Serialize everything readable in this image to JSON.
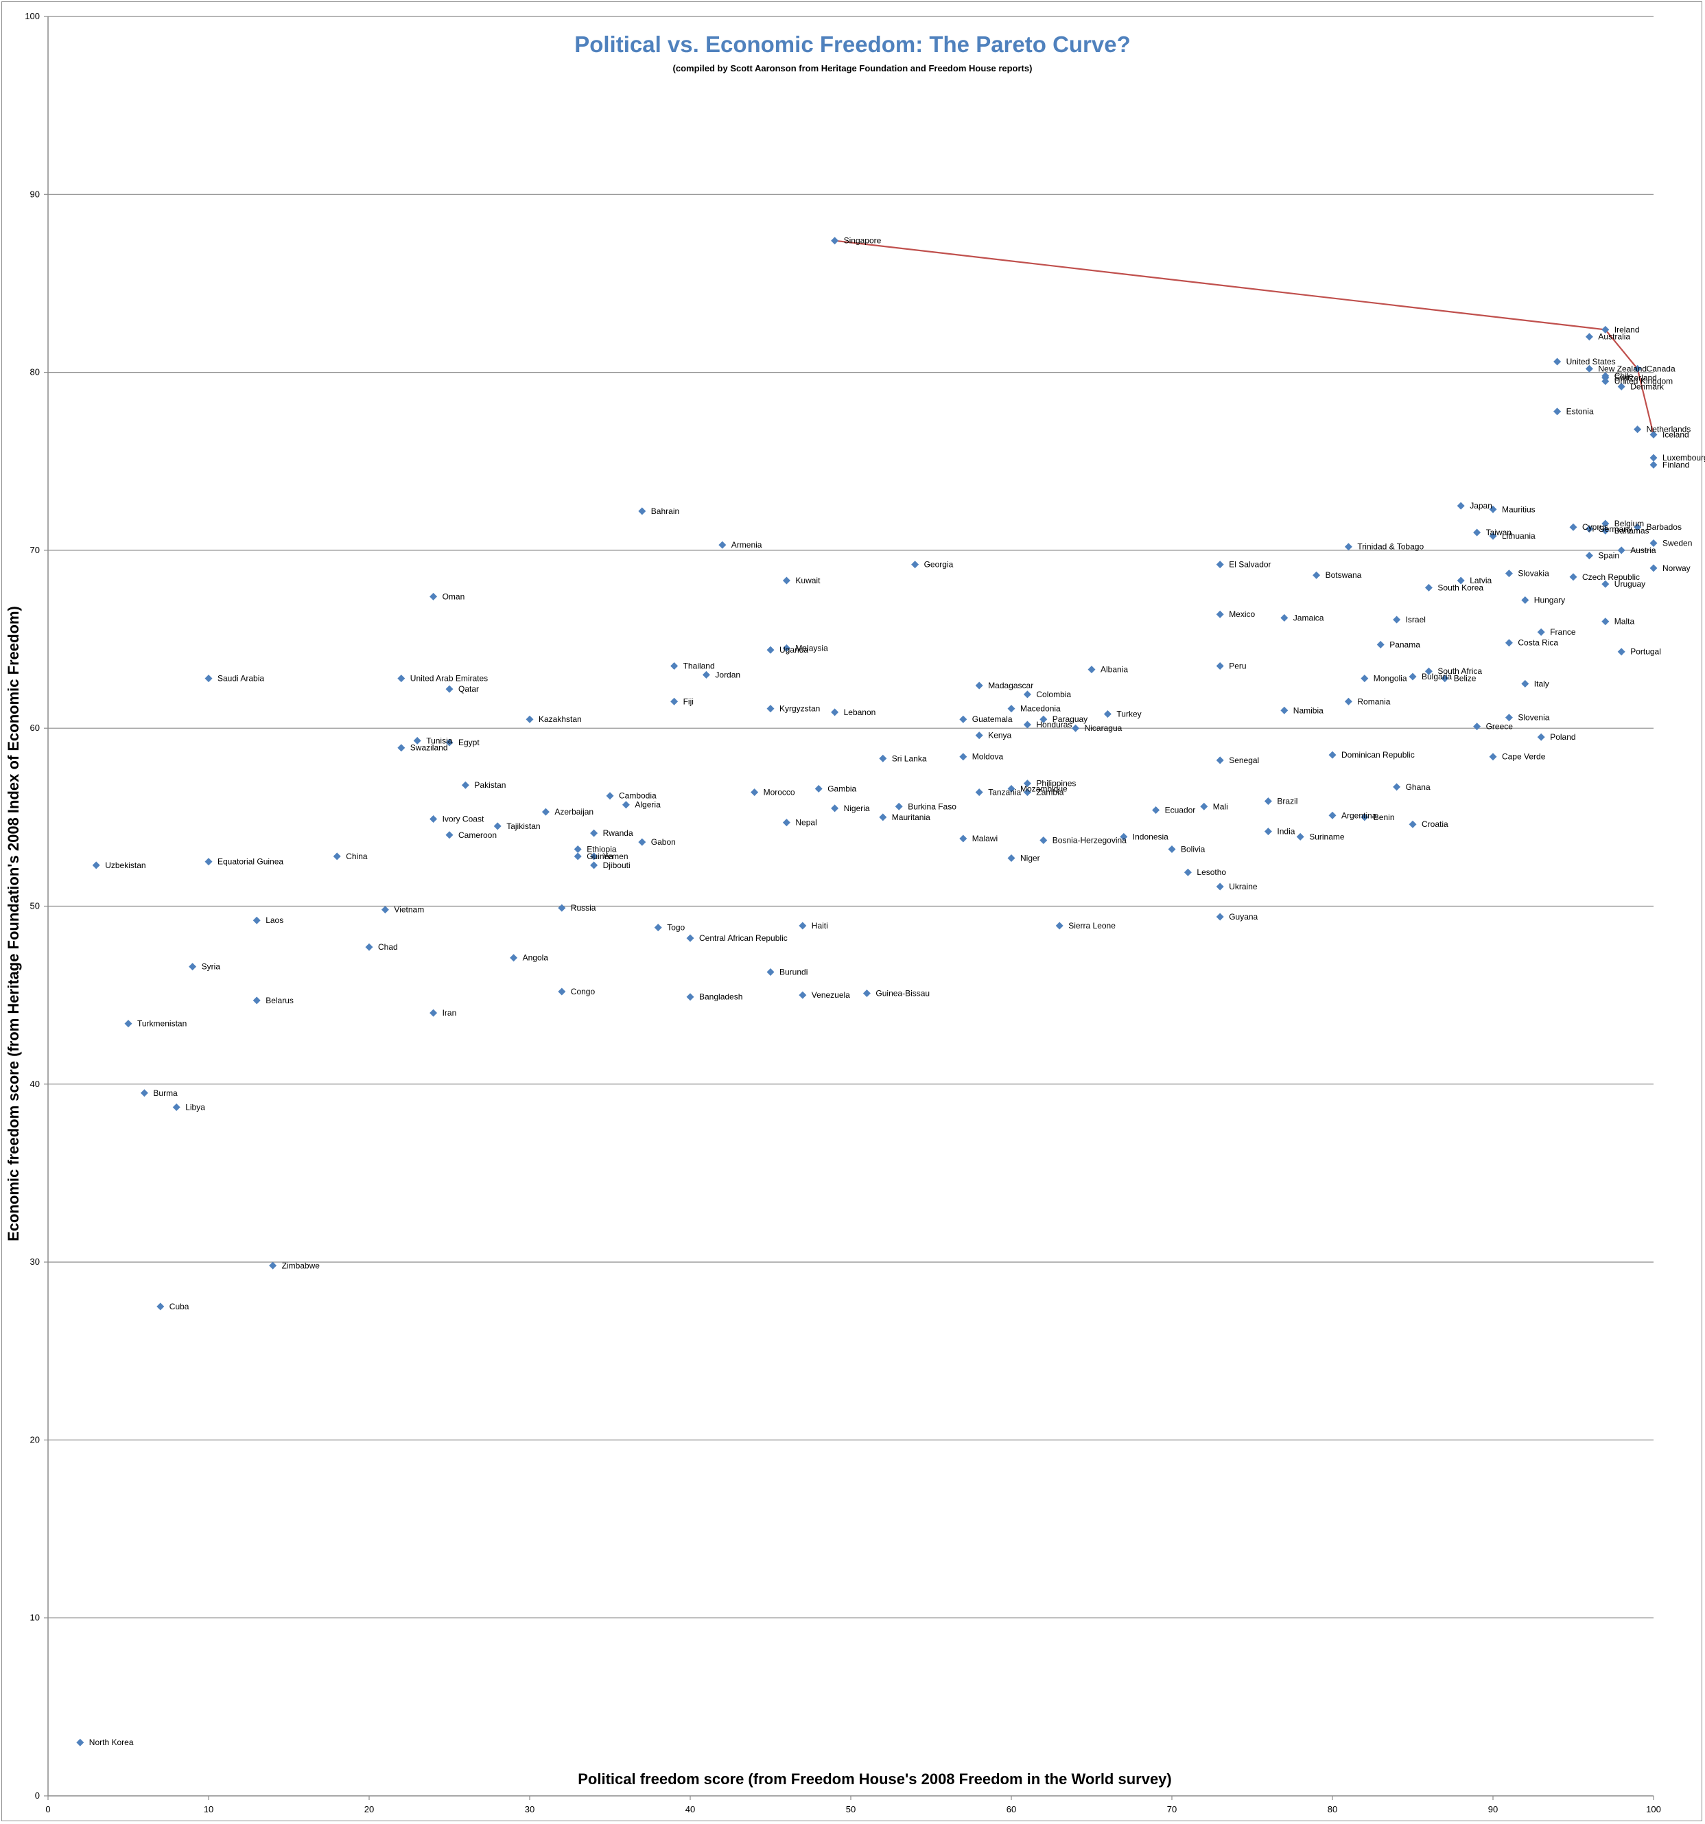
{
  "chart_data": {
    "type": "scatter",
    "title": "Political vs. Economic Freedom: The Pareto Curve?",
    "subtitle": "(compiled by Scott Aaronson from Heritage Foundation and Freedom House reports)",
    "xlabel": "Political freedom score (from Freedom House's 2008 Freedom in the World survey)",
    "ylabel": "Economic freedom score (from Heritage Foundation's 2008 Index of Economic Freedom)",
    "xlim": [
      0,
      100
    ],
    "ylim": [
      0,
      100
    ],
    "x_ticks": [
      0,
      10,
      20,
      30,
      40,
      50,
      60,
      70,
      80,
      90,
      100
    ],
    "y_ticks": [
      0,
      10,
      20,
      30,
      40,
      50,
      60,
      70,
      80,
      90,
      100
    ],
    "grid": "horizontal",
    "point_color": "#4f81bd",
    "frontier_color": "#c0504d",
    "points": [
      {
        "label": "Singapore",
        "x": 49,
        "y": 87.4
      },
      {
        "label": "Ireland",
        "x": 97,
        "y": 82.4
      },
      {
        "label": "Australia",
        "x": 96,
        "y": 82.0
      },
      {
        "label": "United States",
        "x": 94,
        "y": 80.6
      },
      {
        "label": "New Zealand",
        "x": 96,
        "y": 80.2
      },
      {
        "label": "Canada",
        "x": 99,
        "y": 80.2
      },
      {
        "label": "Chile",
        "x": 97,
        "y": 79.8
      },
      {
        "label": "Switzerland",
        "x": 97,
        "y": 79.7
      },
      {
        "label": "United Kingdom",
        "x": 97,
        "y": 79.5
      },
      {
        "label": "Denmark",
        "x": 98,
        "y": 79.2
      },
      {
        "label": "Estonia",
        "x": 94,
        "y": 77.8
      },
      {
        "label": "Netherlands",
        "x": 99,
        "y": 76.8
      },
      {
        "label": "Iceland",
        "x": 100,
        "y": 76.5
      },
      {
        "label": "Luxembourg",
        "x": 100,
        "y": 75.2
      },
      {
        "label": "Finland",
        "x": 100,
        "y": 74.8
      },
      {
        "label": "Japan",
        "x": 88,
        "y": 72.5
      },
      {
        "label": "Mauritius",
        "x": 90,
        "y": 72.3
      },
      {
        "label": "Belgium",
        "x": 97,
        "y": 71.5
      },
      {
        "label": "Barbados",
        "x": 99,
        "y": 71.3
      },
      {
        "label": "Cyprus",
        "x": 95,
        "y": 71.3
      },
      {
        "label": "Germany",
        "x": 96,
        "y": 71.2
      },
      {
        "label": "Bahamas",
        "x": 97,
        "y": 71.1
      },
      {
        "label": "Taiwan",
        "x": 89,
        "y": 71.0
      },
      {
        "label": "Lithuania",
        "x": 90,
        "y": 70.8
      },
      {
        "label": "Sweden",
        "x": 100,
        "y": 70.4
      },
      {
        "label": "Trinidad & Tobago",
        "x": 81,
        "y": 70.2
      },
      {
        "label": "Austria",
        "x": 98,
        "y": 70.0
      },
      {
        "label": "Spain",
        "x": 96,
        "y": 69.7
      },
      {
        "label": "El Salvador",
        "x": 73,
        "y": 69.2
      },
      {
        "label": "Norway",
        "x": 100,
        "y": 69.0
      },
      {
        "label": "Slovakia",
        "x": 91,
        "y": 68.7
      },
      {
        "label": "Botswana",
        "x": 79,
        "y": 68.6
      },
      {
        "label": "Czech Republic",
        "x": 95,
        "y": 68.5
      },
      {
        "label": "Latvia",
        "x": 88,
        "y": 68.3
      },
      {
        "label": "Uruguay",
        "x": 97,
        "y": 68.1
      },
      {
        "label": "South Korea",
        "x": 86,
        "y": 67.9
      },
      {
        "label": "Hungary",
        "x": 92,
        "y": 67.2
      },
      {
        "label": "Mexico",
        "x": 73,
        "y": 66.4
      },
      {
        "label": "Jamaica",
        "x": 77,
        "y": 66.2
      },
      {
        "label": "Israel",
        "x": 84,
        "y": 66.1
      },
      {
        "label": "Malta",
        "x": 97,
        "y": 66.0
      },
      {
        "label": "France",
        "x": 93,
        "y": 65.4
      },
      {
        "label": "Costa Rica",
        "x": 91,
        "y": 64.8
      },
      {
        "label": "Panama",
        "x": 83,
        "y": 64.7
      },
      {
        "label": "Portugal",
        "x": 98,
        "y": 64.3
      },
      {
        "label": "Peru",
        "x": 73,
        "y": 63.5
      },
      {
        "label": "South Africa",
        "x": 86,
        "y": 63.2
      },
      {
        "label": "Bulgaria",
        "x": 85,
        "y": 62.9
      },
      {
        "label": "Belize",
        "x": 87,
        "y": 62.8
      },
      {
        "label": "Mongolia",
        "x": 82,
        "y": 62.8
      },
      {
        "label": "Italy",
        "x": 92,
        "y": 62.5
      },
      {
        "label": "Romania",
        "x": 81,
        "y": 61.5
      },
      {
        "label": "Namibia",
        "x": 77,
        "y": 61.0
      },
      {
        "label": "Slovenia",
        "x": 91,
        "y": 60.6
      },
      {
        "label": "Greece",
        "x": 89,
        "y": 60.1
      },
      {
        "label": "Poland",
        "x": 93,
        "y": 59.5
      },
      {
        "label": "Dominican Republic",
        "x": 80,
        "y": 58.5
      },
      {
        "label": "Cape Verde",
        "x": 90,
        "y": 58.4
      },
      {
        "label": "Senegal",
        "x": 73,
        "y": 58.2
      },
      {
        "label": "Ghana",
        "x": 84,
        "y": 56.7
      },
      {
        "label": "Brazil",
        "x": 76,
        "y": 55.9
      },
      {
        "label": "Mali",
        "x": 72,
        "y": 55.6
      },
      {
        "label": "Ecuador",
        "x": 69,
        "y": 55.4
      },
      {
        "label": "Argentina",
        "x": 80,
        "y": 55.1
      },
      {
        "label": "Benin",
        "x": 82,
        "y": 55.0
      },
      {
        "label": "Croatia",
        "x": 85,
        "y": 54.6
      },
      {
        "label": "India",
        "x": 76,
        "y": 54.2
      },
      {
        "label": "Suriname",
        "x": 78,
        "y": 53.9
      },
      {
        "label": "Indonesia",
        "x": 67,
        "y": 53.9
      },
      {
        "label": "Bolivia",
        "x": 70,
        "y": 53.2
      },
      {
        "label": "Lesotho",
        "x": 71,
        "y": 51.9
      },
      {
        "label": "Ukraine",
        "x": 73,
        "y": 51.1
      },
      {
        "label": "Guyana",
        "x": 73,
        "y": 49.4
      },
      {
        "label": "Georgia",
        "x": 54,
        "y": 69.2
      },
      {
        "label": "Albania",
        "x": 65,
        "y": 63.3
      },
      {
        "label": "Madagascar",
        "x": 58,
        "y": 62.4
      },
      {
        "label": "Colombia",
        "x": 61,
        "y": 61.9
      },
      {
        "label": "Macedonia",
        "x": 60,
        "y": 61.1
      },
      {
        "label": "Turkey",
        "x": 66,
        "y": 60.8
      },
      {
        "label": "Guatemala",
        "x": 57,
        "y": 60.5
      },
      {
        "label": "Paraguay",
        "x": 62,
        "y": 60.5
      },
      {
        "label": "Honduras",
        "x": 61,
        "y": 60.2
      },
      {
        "label": "Nicaragua",
        "x": 64,
        "y": 60.0
      },
      {
        "label": "Kenya",
        "x": 58,
        "y": 59.6
      },
      {
        "label": "Moldova",
        "x": 57,
        "y": 58.4
      },
      {
        "label": "Sri Lanka",
        "x": 52,
        "y": 58.3
      },
      {
        "label": "Philippines",
        "x": 61,
        "y": 56.9
      },
      {
        "label": "Mozambique",
        "x": 60,
        "y": 56.6
      },
      {
        "label": "Zambia",
        "x": 61,
        "y": 56.4
      },
      {
        "label": "Tanzania",
        "x": 58,
        "y": 56.4
      },
      {
        "label": "Burkina Faso",
        "x": 53,
        "y": 55.6
      },
      {
        "label": "Mauritania",
        "x": 52,
        "y": 55.0
      },
      {
        "label": "Malawi",
        "x": 57,
        "y": 53.8
      },
      {
        "label": "Bosnia-Herzegovina",
        "x": 62,
        "y": 53.7
      },
      {
        "label": "Niger",
        "x": 60,
        "y": 52.7
      },
      {
        "label": "Sierra Leone",
        "x": 63,
        "y": 48.9
      },
      {
        "label": "Bahrain",
        "x": 37,
        "y": 72.2
      },
      {
        "label": "Armenia",
        "x": 42,
        "y": 70.3
      },
      {
        "label": "Kuwait",
        "x": 46,
        "y": 68.3
      },
      {
        "label": "Oman",
        "x": 24,
        "y": 67.4
      },
      {
        "label": "Malaysia",
        "x": 46,
        "y": 64.5
      },
      {
        "label": "Uganda",
        "x": 45,
        "y": 64.4
      },
      {
        "label": "Thailand",
        "x": 39,
        "y": 63.5
      },
      {
        "label": "Jordan",
        "x": 41,
        "y": 63.0
      },
      {
        "label": "Saudi Arabia",
        "x": 10,
        "y": 62.8
      },
      {
        "label": "United Arab Emirates",
        "x": 22,
        "y": 62.8
      },
      {
        "label": "Qatar",
        "x": 25,
        "y": 62.2
      },
      {
        "label": "Fiji",
        "x": 39,
        "y": 61.5
      },
      {
        "label": "Kyrgyzstan",
        "x": 45,
        "y": 61.1
      },
      {
        "label": "Lebanon",
        "x": 49,
        "y": 60.9
      },
      {
        "label": "Kazakhstan",
        "x": 30,
        "y": 60.5
      },
      {
        "label": "Tunisia",
        "x": 23,
        "y": 59.3
      },
      {
        "label": "Egypt",
        "x": 25,
        "y": 59.2
      },
      {
        "label": "Swaziland",
        "x": 22,
        "y": 58.9
      },
      {
        "label": "Pakistan",
        "x": 26,
        "y": 56.8
      },
      {
        "label": "Morocco",
        "x": 44,
        "y": 56.4
      },
      {
        "label": "Gambia",
        "x": 48,
        "y": 56.6
      },
      {
        "label": "Cambodia",
        "x": 35,
        "y": 56.2
      },
      {
        "label": "Algeria",
        "x": 36,
        "y": 55.7
      },
      {
        "label": "Nigeria",
        "x": 49,
        "y": 55.5
      },
      {
        "label": "Azerbaijan",
        "x": 31,
        "y": 55.3
      },
      {
        "label": "Ivory Coast",
        "x": 24,
        "y": 54.9
      },
      {
        "label": "Nepal",
        "x": 46,
        "y": 54.7
      },
      {
        "label": "Tajikistan",
        "x": 28,
        "y": 54.5
      },
      {
        "label": "Rwanda",
        "x": 34,
        "y": 54.1
      },
      {
        "label": "Cameroon",
        "x": 25,
        "y": 54.0
      },
      {
        "label": "Gabon",
        "x": 37,
        "y": 53.6
      },
      {
        "label": "Ethiopia",
        "x": 33,
        "y": 53.2
      },
      {
        "label": "Guinea",
        "x": 33,
        "y": 52.8
      },
      {
        "label": "Yemen",
        "x": 34,
        "y": 52.8
      },
      {
        "label": "Djibouti",
        "x": 34,
        "y": 52.3
      },
      {
        "label": "China",
        "x": 18,
        "y": 52.8
      },
      {
        "label": "Equatorial Guinea",
        "x": 10,
        "y": 52.5
      },
      {
        "label": "Uzbekistan",
        "x": 3,
        "y": 52.3
      },
      {
        "label": "Russia",
        "x": 32,
        "y": 49.9
      },
      {
        "label": "Vietnam",
        "x": 21,
        "y": 49.8
      },
      {
        "label": "Laos",
        "x": 13,
        "y": 49.2
      },
      {
        "label": "Haiti",
        "x": 47,
        "y": 48.9
      },
      {
        "label": "Togo",
        "x": 38,
        "y": 48.8
      },
      {
        "label": "Central African Republic",
        "x": 40,
        "y": 48.2
      },
      {
        "label": "Chad",
        "x": 20,
        "y": 47.7
      },
      {
        "label": "Angola",
        "x": 29,
        "y": 47.1
      },
      {
        "label": "Syria",
        "x": 9,
        "y": 46.6
      },
      {
        "label": "Burundi",
        "x": 45,
        "y": 46.3
      },
      {
        "label": "Congo",
        "x": 32,
        "y": 45.2
      },
      {
        "label": "Guinea-Bissau",
        "x": 51,
        "y": 45.1
      },
      {
        "label": "Venezuela",
        "x": 47,
        "y": 45.0
      },
      {
        "label": "Bangladesh",
        "x": 40,
        "y": 44.9
      },
      {
        "label": "Belarus",
        "x": 13,
        "y": 44.7
      },
      {
        "label": "Iran",
        "x": 24,
        "y": 44.0
      },
      {
        "label": "Turkmenistan",
        "x": 5,
        "y": 43.4
      },
      {
        "label": "Burma",
        "x": 6,
        "y": 39.5
      },
      {
        "label": "Libya",
        "x": 8,
        "y": 38.7
      },
      {
        "label": "Zimbabwe",
        "x": 14,
        "y": 29.8
      },
      {
        "label": "Cuba",
        "x": 7,
        "y": 27.5
      },
      {
        "label": "North Korea",
        "x": 2,
        "y": 3.0
      }
    ],
    "frontier": [
      {
        "x": 49,
        "y": 87.4
      },
      {
        "x": 97,
        "y": 82.4
      },
      {
        "x": 99,
        "y": 80.2
      },
      {
        "x": 100,
        "y": 76.5
      }
    ]
  }
}
